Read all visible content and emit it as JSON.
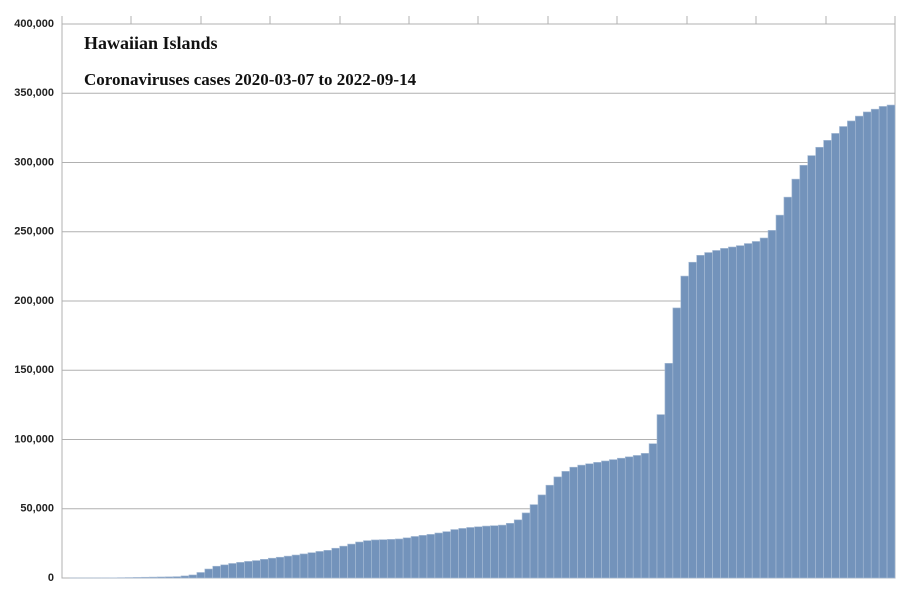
{
  "chart_data": {
    "type": "bar",
    "title": "Hawaiian Islands",
    "subtitle": "Coronaviruses cases 2020-03-07 to 2022-09-14",
    "values": [
      0,
      10,
      20,
      30,
      50,
      80,
      150,
      250,
      350,
      450,
      550,
      650,
      750,
      850,
      1000,
      1500,
      2200,
      4000,
      6500,
      8500,
      9500,
      10500,
      11300,
      12000,
      12600,
      13500,
      14300,
      15000,
      15800,
      16600,
      17400,
      18300,
      19200,
      20000,
      21500,
      23000,
      24500,
      26000,
      27000,
      27500,
      27700,
      27900,
      28200,
      29000,
      30000,
      30800,
      31500,
      32500,
      33500,
      35000,
      35800,
      36500,
      37000,
      37500,
      37800,
      38200,
      39500,
      42000,
      47000,
      53000,
      60000,
      67000,
      73000,
      77000,
      80000,
      81500,
      82500,
      83500,
      84500,
      85500,
      86500,
      87500,
      88500,
      90000,
      97000,
      118000,
      155000,
      195000,
      218000,
      228000,
      233000,
      235000,
      236500,
      238000,
      239000,
      240000,
      241500,
      243000,
      245500,
      251000,
      262000,
      275000,
      288000,
      298000,
      305000,
      311000,
      316000,
      321000,
      326000,
      330000,
      333500,
      336500,
      338500,
      340500,
      341500
    ],
    "color": "#7393bb",
    "ylim": [
      0,
      400000
    ],
    "yticks": [
      0,
      {
        "value": 50000,
        "label": "50,000"
      },
      {
        "value": 100000,
        "label": "100,000"
      },
      {
        "value": 150000,
        "label": "150,000"
      },
      {
        "value": 200000,
        "label": "200,000"
      },
      {
        "value": 250000,
        "label": "250,000"
      },
      {
        "value": 300000,
        "label": "300,000"
      },
      {
        "value": 350000,
        "label": "350,000"
      },
      {
        "value": 400000,
        "label": "400,000"
      }
    ],
    "grid": true
  }
}
